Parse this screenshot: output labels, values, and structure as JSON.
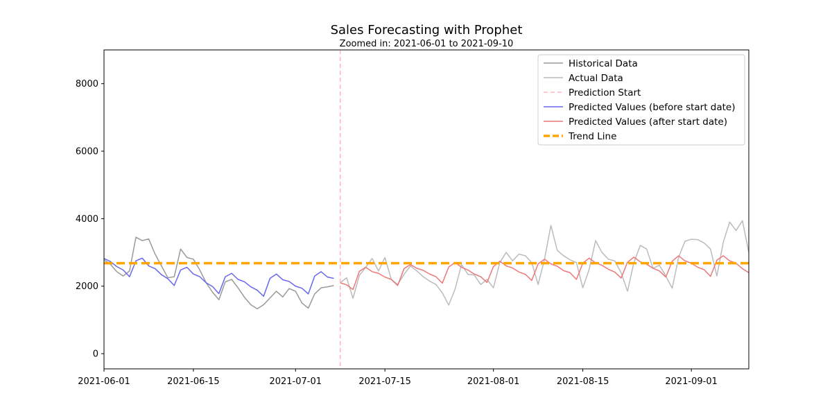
{
  "chart_data": {
    "type": "line",
    "title": "Sales Forecasting with Prophet",
    "subtitle": "Zoomed in: 2021-06-01 to 2021-09-10",
    "xlabel": "",
    "ylabel": "",
    "xlim": [
      "2021-06-01",
      "2021-09-10"
    ],
    "ylim": [
      -450,
      9000
    ],
    "x_ticks": [
      "2021-06-01",
      "2021-06-15",
      "2021-07-01",
      "2021-07-15",
      "2021-08-01",
      "2021-08-15",
      "2021-09-01"
    ],
    "y_ticks": [
      0,
      2000,
      4000,
      6000,
      8000
    ],
    "grid": false,
    "legend_position": "top-right",
    "prediction_start": "2021-07-08",
    "trend_value": 2680,
    "series": [
      {
        "name": "Historical Data",
        "color": "#999999",
        "start_date": "2021-06-01",
        "values": [
          2780,
          2650,
          2430,
          2300,
          2450,
          3450,
          3350,
          3400,
          2950,
          2600,
          2250,
          2280,
          3100,
          2850,
          2800,
          2480,
          2100,
          1820,
          1600,
          2130,
          2200,
          1950,
          1670,
          1450,
          1330,
          1450,
          1650,
          1850,
          1680,
          1930,
          1850,
          1500,
          1350,
          1770,
          1950,
          1980,
          2020
        ]
      },
      {
        "name": "Actual Data",
        "color": "#bbbbbb",
        "start_date": "2021-07-08",
        "values": [
          2100,
          2250,
          1640,
          2320,
          2560,
          2820,
          2450,
          2850,
          2200,
          2050,
          2350,
          2600,
          2450,
          2280,
          2150,
          2050,
          1800,
          1440,
          1920,
          2640,
          2350,
          2330,
          2050,
          2200,
          1950,
          2700,
          3000,
          2750,
          2950,
          2900,
          2700,
          2050,
          2800,
          3800,
          3060,
          2900,
          2780,
          2700,
          1950,
          2500,
          3350,
          3000,
          2800,
          2750,
          2400,
          1850,
          2700,
          3210,
          3100,
          2530,
          2620,
          2300,
          1940,
          2850,
          3330,
          3390,
          3380,
          3280,
          3100,
          2300,
          3300,
          3900,
          3650,
          3940,
          3000,
          2950
        ]
      },
      {
        "name": "Predicted Values (before start date)",
        "color": "#6666ee",
        "start_date": "2021-06-01",
        "values": [
          2820,
          2730,
          2580,
          2480,
          2280,
          2750,
          2830,
          2600,
          2520,
          2340,
          2220,
          2020,
          2480,
          2560,
          2360,
          2280,
          2100,
          1990,
          1780,
          2280,
          2380,
          2200,
          2130,
          1980,
          1880,
          1700,
          2230,
          2360,
          2190,
          2140,
          2000,
          1940,
          1770,
          2300,
          2430,
          2270,
          2230
        ]
      },
      {
        "name": "Predicted Values (after start date)",
        "color": "#ee7777",
        "start_date": "2021-07-08",
        "values": [
          2100,
          2040,
          1900,
          2440,
          2560,
          2430,
          2380,
          2270,
          2200,
          2020,
          2520,
          2640,
          2530,
          2470,
          2360,
          2280,
          2090,
          2570,
          2700,
          2560,
          2480,
          2360,
          2280,
          2110,
          2580,
          2740,
          2600,
          2540,
          2420,
          2350,
          2170,
          2660,
          2800,
          2660,
          2590,
          2460,
          2400,
          2200,
          2680,
          2830,
          2690,
          2620,
          2500,
          2420,
          2240,
          2710,
          2860,
          2720,
          2650,
          2530,
          2450,
          2270,
          2740,
          2900,
          2750,
          2680,
          2560,
          2490,
          2290,
          2770,
          2900,
          2750,
          2680,
          2520,
          2400,
          2370
        ]
      }
    ],
    "legend": [
      {
        "label": "Historical Data",
        "color": "#999999",
        "style": "solid"
      },
      {
        "label": "Actual Data",
        "color": "#bbbbbb",
        "style": "solid"
      },
      {
        "label": "Prediction Start",
        "color": "#ffb6c1",
        "style": "dashed"
      },
      {
        "label": "Predicted Values (before start date)",
        "color": "#6666ee",
        "style": "solid"
      },
      {
        "label": "Predicted Values (after start date)",
        "color": "#ee7777",
        "style": "solid"
      },
      {
        "label": "Trend Line",
        "color": "#ffa500",
        "style": "dashed"
      }
    ]
  }
}
